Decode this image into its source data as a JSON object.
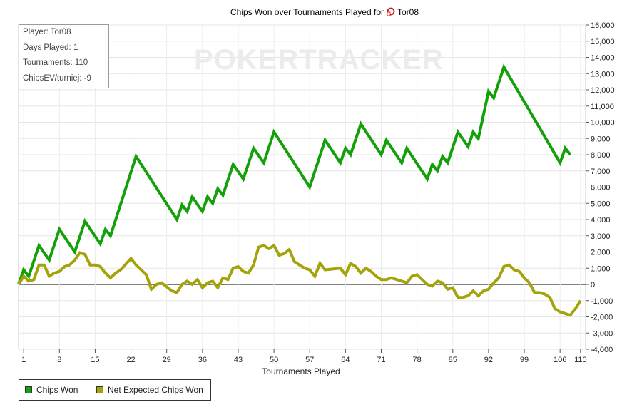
{
  "chart_data": {
    "type": "line",
    "title": "Chips Won over Tournaments Played for",
    "title_player": "Tor08",
    "xlabel": "Tournaments Played",
    "ylabel": "",
    "xlim": [
      0,
      111
    ],
    "ylim": [
      -4000,
      16000
    ],
    "x_ticks": [
      1,
      8,
      15,
      22,
      29,
      36,
      43,
      50,
      57,
      64,
      71,
      78,
      85,
      92,
      99,
      106,
      110
    ],
    "y_ticks": [
      -4000,
      -3000,
      -2000,
      -1000,
      0,
      1000,
      2000,
      3000,
      4000,
      5000,
      6000,
      7000,
      8000,
      9000,
      10000,
      11000,
      12000,
      13000,
      14000,
      15000,
      16000
    ],
    "y_tick_labels": [
      "-4,000",
      "-3,000",
      "-2,000",
      "-1,000",
      "0",
      "1,000",
      "2,000",
      "3,000",
      "4,000",
      "5,000",
      "6,000",
      "7,000",
      "8,000",
      "9,000",
      "10,000",
      "11,000",
      "12,000",
      "13,000",
      "14,000",
      "15,000",
      "16,000"
    ],
    "grid": true,
    "legend": "bottom-left",
    "series": [
      {
        "name": "Chips Won",
        "color": "#14a00a",
        "points": [
          [
            0,
            0
          ],
          [
            1,
            900
          ],
          [
            2,
            500
          ],
          [
            4,
            2400
          ],
          [
            6,
            1500
          ],
          [
            8,
            3400
          ],
          [
            11,
            2000
          ],
          [
            13,
            3900
          ],
          [
            16,
            2500
          ],
          [
            17,
            3400
          ],
          [
            18,
            3000
          ],
          [
            23,
            7900
          ],
          [
            31,
            4000
          ],
          [
            32,
            4900
          ],
          [
            33,
            4500
          ],
          [
            34,
            5400
          ],
          [
            36,
            4500
          ],
          [
            37,
            5400
          ],
          [
            38,
            5000
          ],
          [
            39,
            5900
          ],
          [
            40,
            5500
          ],
          [
            42,
            7400
          ],
          [
            44,
            6500
          ],
          [
            46,
            8400
          ],
          [
            48,
            7500
          ],
          [
            50,
            9400
          ],
          [
            57,
            6000
          ],
          [
            60,
            8900
          ],
          [
            63,
            7500
          ],
          [
            64,
            8400
          ],
          [
            65,
            8000
          ],
          [
            67,
            9900
          ],
          [
            71,
            8000
          ],
          [
            72,
            8900
          ],
          [
            75,
            7500
          ],
          [
            76,
            8400
          ],
          [
            80,
            6500
          ],
          [
            81,
            7400
          ],
          [
            82,
            7000
          ],
          [
            83,
            7900
          ],
          [
            84,
            7500
          ],
          [
            86,
            9400
          ],
          [
            88,
            8500
          ],
          [
            89,
            9400
          ],
          [
            90,
            9000
          ],
          [
            92,
            11900
          ],
          [
            93,
            11500
          ],
          [
            95,
            13400
          ],
          [
            106,
            7500
          ],
          [
            107,
            8400
          ],
          [
            108,
            8000
          ]
        ]
      },
      {
        "name": "Net Expected Chips Won",
        "color": "#a4a40a",
        "points": [
          [
            0,
            0
          ],
          [
            1,
            500
          ],
          [
            2,
            200
          ],
          [
            3,
            300
          ],
          [
            4,
            1200
          ],
          [
            5,
            1200
          ],
          [
            6,
            500
          ],
          [
            7,
            700
          ],
          [
            8,
            800
          ],
          [
            9,
            1100
          ],
          [
            10,
            1200
          ],
          [
            11,
            1500
          ],
          [
            12,
            1950
          ],
          [
            13,
            1850
          ],
          [
            14,
            1200
          ],
          [
            15,
            1200
          ],
          [
            16,
            1100
          ],
          [
            17,
            700
          ],
          [
            18,
            400
          ],
          [
            19,
            700
          ],
          [
            20,
            900
          ],
          [
            22,
            1600
          ],
          [
            23,
            1200
          ],
          [
            25,
            600
          ],
          [
            26,
            -300
          ],
          [
            27,
            0
          ],
          [
            28,
            100
          ],
          [
            30,
            -400
          ],
          [
            31,
            -500
          ],
          [
            32,
            0
          ],
          [
            33,
            200
          ],
          [
            34,
            0
          ],
          [
            35,
            300
          ],
          [
            36,
            -200
          ],
          [
            37,
            100
          ],
          [
            38,
            200
          ],
          [
            39,
            -200
          ],
          [
            40,
            400
          ],
          [
            41,
            300
          ],
          [
            42,
            1000
          ],
          [
            43,
            1100
          ],
          [
            44,
            800
          ],
          [
            45,
            700
          ],
          [
            46,
            1200
          ],
          [
            47,
            2300
          ],
          [
            48,
            2400
          ],
          [
            49,
            2200
          ],
          [
            50,
            2400
          ],
          [
            51,
            1800
          ],
          [
            52,
            1900
          ],
          [
            53,
            2150
          ],
          [
            54,
            1400
          ],
          [
            56,
            1000
          ],
          [
            57,
            900
          ],
          [
            58,
            500
          ],
          [
            59,
            1300
          ],
          [
            60,
            900
          ],
          [
            63,
            1000
          ],
          [
            64,
            600
          ],
          [
            65,
            1300
          ],
          [
            66,
            1100
          ],
          [
            67,
            700
          ],
          [
            68,
            1000
          ],
          [
            69,
            800
          ],
          [
            70,
            500
          ],
          [
            71,
            300
          ],
          [
            72,
            300
          ],
          [
            73,
            400
          ],
          [
            75,
            200
          ],
          [
            76,
            100
          ],
          [
            77,
            500
          ],
          [
            78,
            600
          ],
          [
            79,
            300
          ],
          [
            80,
            0
          ],
          [
            81,
            -100
          ],
          [
            82,
            200
          ],
          [
            83,
            100
          ],
          [
            84,
            -300
          ],
          [
            85,
            -200
          ],
          [
            86,
            -800
          ],
          [
            87,
            -800
          ],
          [
            88,
            -700
          ],
          [
            89,
            -400
          ],
          [
            90,
            -700
          ],
          [
            91,
            -400
          ],
          [
            92,
            -300
          ],
          [
            93,
            100
          ],
          [
            94,
            400
          ],
          [
            95,
            1100
          ],
          [
            96,
            1200
          ],
          [
            97,
            900
          ],
          [
            98,
            800
          ],
          [
            99,
            400
          ],
          [
            100,
            100
          ],
          [
            101,
            -500
          ],
          [
            102,
            -500
          ],
          [
            103,
            -600
          ],
          [
            104,
            -800
          ],
          [
            105,
            -1500
          ],
          [
            106,
            -1700
          ],
          [
            107,
            -1800
          ],
          [
            108,
            -1900
          ],
          [
            109,
            -1500
          ],
          [
            110,
            -1000
          ]
        ]
      }
    ]
  },
  "info_box": {
    "player": "Player: Tor08",
    "days": "Days Played: 1",
    "tournaments": "Tournaments: 110",
    "chipsev": "ChipsEV/turniej: -9"
  },
  "watermark": "POKERTRACKER"
}
